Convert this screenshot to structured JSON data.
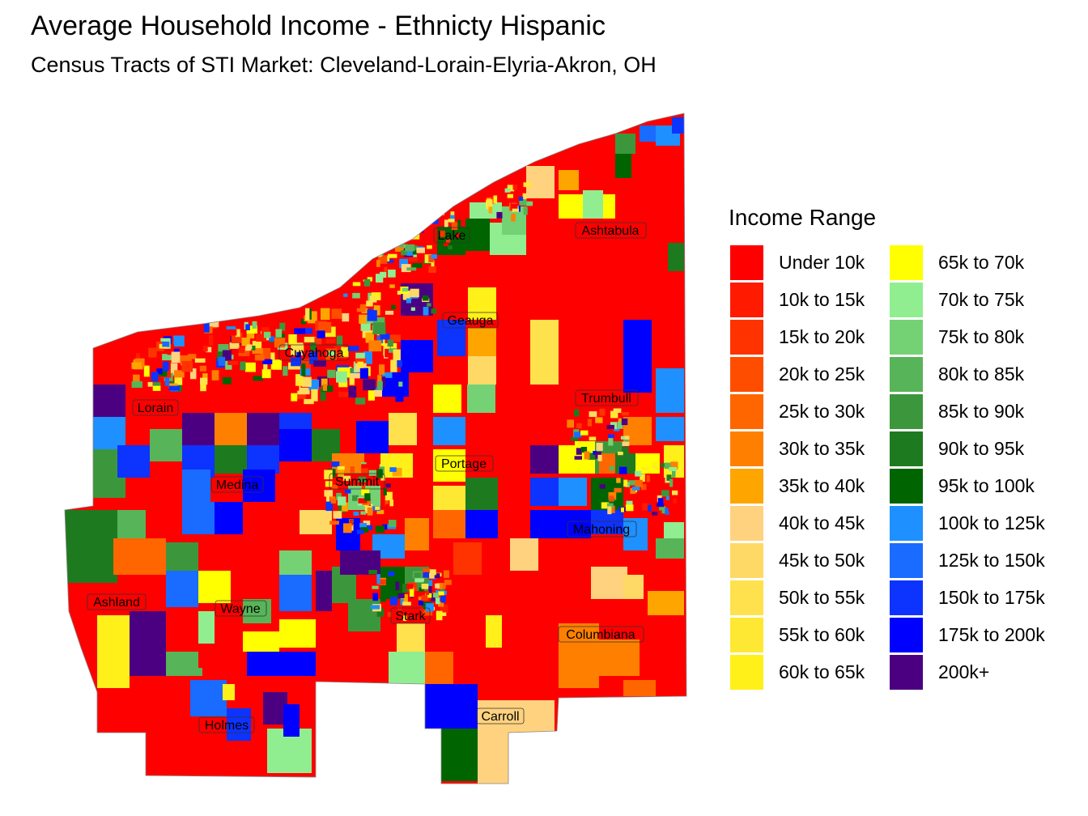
{
  "title": "Average Household Income - Ethnicty Hispanic",
  "subtitle": "Census Tracts of STI Market: Cleveland-Lorain-Elyria-Akron, OH",
  "legend": {
    "title": "Income Range",
    "items": [
      {
        "label": "Under 10k",
        "color": "#FF0000"
      },
      {
        "label": "10k to 15k",
        "color": "#FF1A00"
      },
      {
        "label": "15k to 20k",
        "color": "#FF3300"
      },
      {
        "label": "20k to 25k",
        "color": "#FF4D00"
      },
      {
        "label": "25k to 30k",
        "color": "#FF6600"
      },
      {
        "label": "30k to 35k",
        "color": "#FF8000"
      },
      {
        "label": "35k to 40k",
        "color": "#FFA500"
      },
      {
        "label": "40k to 45k",
        "color": "#FFD27F"
      },
      {
        "label": "45k to 50k",
        "color": "#FFD966"
      },
      {
        "label": "50k to 55k",
        "color": "#FFE14D"
      },
      {
        "label": "55k to 60k",
        "color": "#FFE833"
      },
      {
        "label": "60k to 65k",
        "color": "#FFF01A"
      },
      {
        "label": "65k to 70k",
        "color": "#FFFF00"
      },
      {
        "label": "70k to 75k",
        "color": "#90EE90"
      },
      {
        "label": "75k to 80k",
        "color": "#74D174"
      },
      {
        "label": "80k to 85k",
        "color": "#58B458"
      },
      {
        "label": "85k to 90k",
        "color": "#3C973C"
      },
      {
        "label": "90k to 95k",
        "color": "#1E7A1E"
      },
      {
        "label": "95k to 100k",
        "color": "#006400"
      },
      {
        "label": "100k to 125k",
        "color": "#1E90FF"
      },
      {
        "label": "125k to 150k",
        "color": "#1A6BFF"
      },
      {
        "label": "150k to 175k",
        "color": "#0D33FF"
      },
      {
        "label": "175k to 200k",
        "color": "#0000FF"
      },
      {
        "label": "200k+",
        "color": "#4B0082"
      }
    ]
  },
  "counties": [
    {
      "name": "Ashtabula"
    },
    {
      "name": "Lake"
    },
    {
      "name": "Geauga"
    },
    {
      "name": "Cuyahoga"
    },
    {
      "name": "Lorain"
    },
    {
      "name": "Trumbull"
    },
    {
      "name": "Portage"
    },
    {
      "name": "Summit"
    },
    {
      "name": "Medina"
    },
    {
      "name": "Mahoning"
    },
    {
      "name": "Ashland"
    },
    {
      "name": "Wayne"
    },
    {
      "name": "Stark"
    },
    {
      "name": "Columbiana"
    },
    {
      "name": "Holmes"
    },
    {
      "name": "Carroll"
    }
  ]
}
